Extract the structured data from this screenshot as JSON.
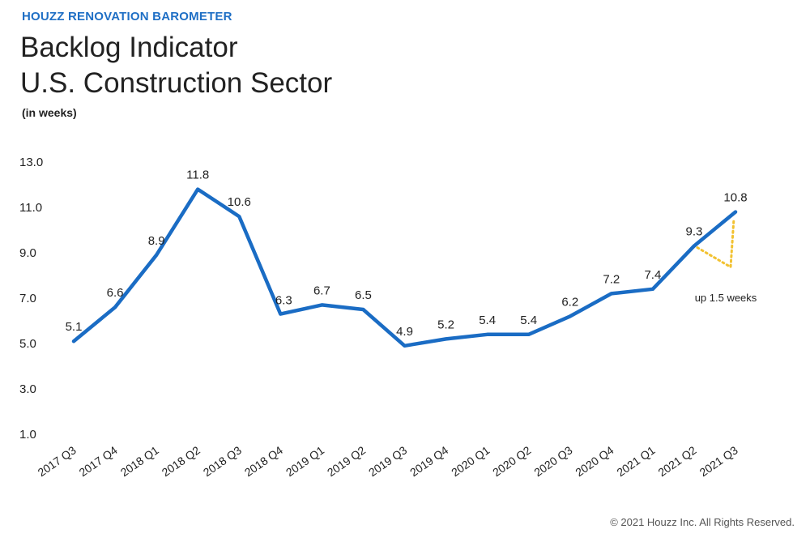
{
  "header": {
    "eyebrow": "HOUZZ RENOVATION BAROMETER",
    "title_line1": "Backlog Indicator",
    "title_line2": "U.S. Construction Sector",
    "subtitle": "(in weeks)"
  },
  "footer": {
    "copyright": "© 2021 Houzz Inc. All Rights Reserved."
  },
  "chart_data": {
    "type": "line",
    "title": "Backlog Indicator U.S. Construction Sector",
    "ylabel": "(in weeks)",
    "xlabel": "",
    "ylim": [
      1.0,
      13.0
    ],
    "yticks": [
      "13.0",
      "11.0",
      "9.0",
      "7.0",
      "5.0",
      "3.0",
      "1.0"
    ],
    "grid": false,
    "categories": [
      "2017 Q3",
      "2017 Q4",
      "2018 Q1",
      "2018 Q2",
      "2018 Q3",
      "2018 Q4",
      "2019 Q1",
      "2019 Q2",
      "2019 Q3",
      "2019 Q4",
      "2020 Q1",
      "2020 Q2",
      "2020 Q3",
      "2020 Q4",
      "2021 Q1",
      "2021 Q2",
      "2021 Q3"
    ],
    "series": [
      {
        "name": "Backlog (weeks)",
        "color": "#1a6cc4",
        "values": [
          5.1,
          6.6,
          8.9,
          11.8,
          10.6,
          6.3,
          6.7,
          6.5,
          4.9,
          5.2,
          5.4,
          5.4,
          6.2,
          7.2,
          7.4,
          9.3,
          10.8
        ],
        "labels": [
          "5.1",
          "6.6",
          "8.9",
          "11.8",
          "10.6",
          "6.3",
          "6.7",
          "6.5",
          "4.9",
          "5.2",
          "5.4",
          "5.4",
          "6.2",
          "7.2",
          "7.4",
          "9.3",
          "10.8"
        ]
      }
    ],
    "annotation": {
      "text": "up 1.5 weeks",
      "color": "#f2c232",
      "from": "2021 Q2",
      "to": "2021 Q3"
    }
  }
}
